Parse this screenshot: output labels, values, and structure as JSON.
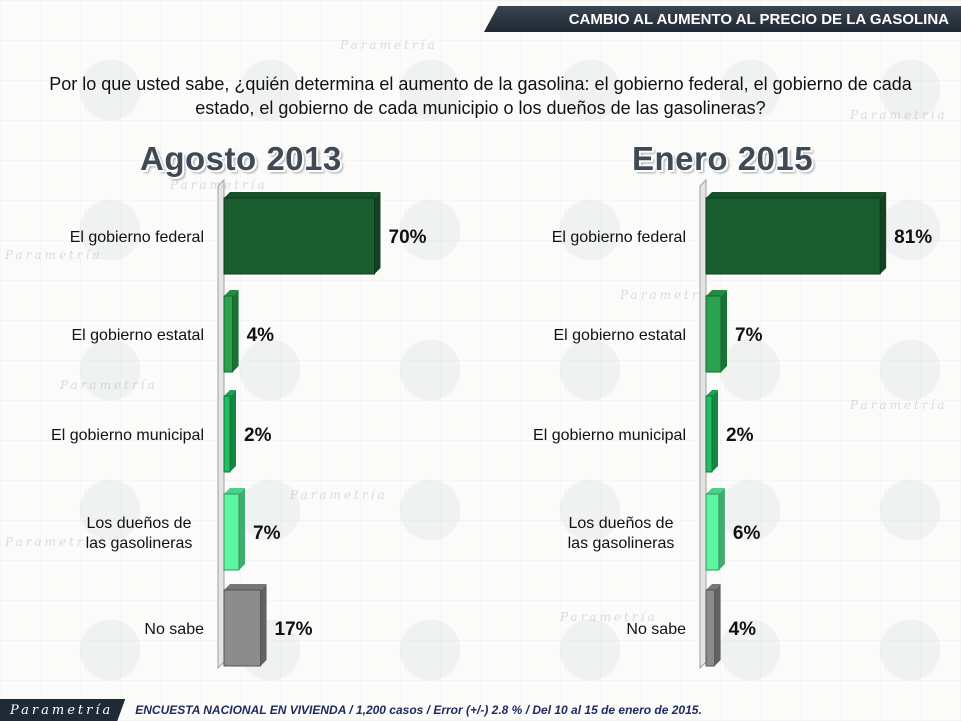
{
  "header": {
    "title": "CAMBIO AL AUMENTO AL PRECIO DE LA GASOLINA"
  },
  "question": "Por lo que usted sabe, ¿quién determina el aumento de la gasolina: el gobierno federal, el gobierno de cada estado, el gobierno de cada municipio o los dueños de las gasolineras?",
  "footer": {
    "logo": "Parametría",
    "note": "ENCUESTA NACIONAL EN VIVIENDA / 1,200 casos / Error (+/-) 2.8 % / Del 10 al 15 de enero de 2015."
  },
  "watermark": "Parametría",
  "colors": {
    "dark_green": "#1a5e30",
    "mid_green": "#2aa24e",
    "bright_green": "#20c060",
    "light_green": "#5cf5a0",
    "gray": "#8c8c8c"
  },
  "chart_data": [
    {
      "type": "bar",
      "orientation": "horizontal",
      "title": "Agosto 2013",
      "categories": [
        "El gobierno federal",
        "El gobierno estatal",
        "El gobierno municipal",
        "Los dueños de las gasolineras",
        "No sabe"
      ],
      "values": [
        70,
        4,
        2,
        7,
        17
      ],
      "value_labels": [
        "70%",
        "4%",
        "2%",
        "7%",
        "17%"
      ],
      "bar_colors": [
        "dark_green",
        "mid_green",
        "bright_green",
        "light_green",
        "gray"
      ],
      "xlim": [
        0,
        100
      ]
    },
    {
      "type": "bar",
      "orientation": "horizontal",
      "title": "Enero 2015",
      "categories": [
        "El gobierno federal",
        "El gobierno estatal",
        "El gobierno municipal",
        "Los dueños de las gasolineras",
        "No sabe"
      ],
      "values": [
        81,
        7,
        2,
        6,
        4
      ],
      "value_labels": [
        "81%",
        "7%",
        "2%",
        "6%",
        "4%"
      ],
      "bar_colors": [
        "dark_green",
        "mid_green",
        "bright_green",
        "light_green",
        "gray"
      ],
      "xlim": [
        0,
        100
      ]
    }
  ]
}
